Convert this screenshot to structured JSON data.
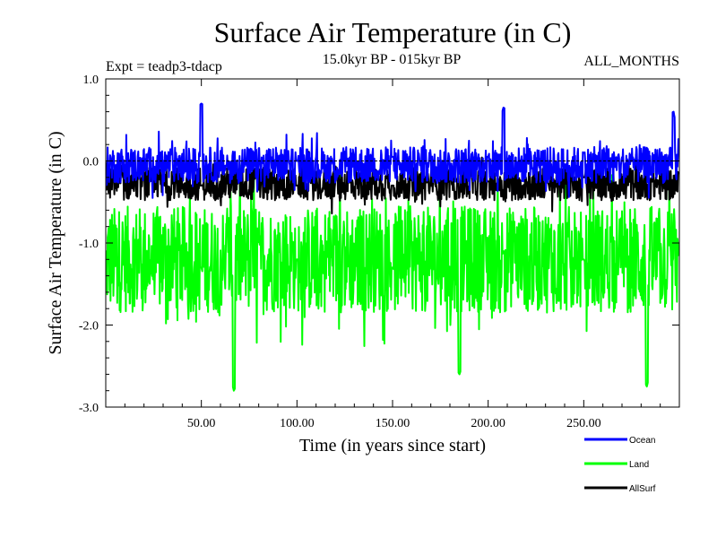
{
  "chart_data": {
    "type": "line",
    "title": "Surface Air Temperature (in C)",
    "subtitle_left": "Expt = teadp3-tdacp",
    "subtitle_center": "15.0kyr BP - 015kyr BP",
    "subtitle_right": "ALL_MONTHS",
    "xlabel": "Time (in years since start)",
    "ylabel": "Surface Air Temperature (in C)",
    "xlim": [
      0,
      300
    ],
    "ylim": [
      -3.0,
      1.0
    ],
    "xticks": [
      50,
      100,
      150,
      200,
      250
    ],
    "xtick_labels": [
      "50.00",
      "100.00",
      "150.00",
      "200.00",
      "250.00"
    ],
    "yticks": [
      1.0,
      0.0,
      -1.0,
      -2.0,
      -3.0
    ],
    "ytick_labels": [
      "1.0",
      "0.0",
      "-1.0",
      "-2.0",
      "-3.0"
    ],
    "reference_line_y": 0.0,
    "series": [
      {
        "name": "Land",
        "color": "#00ff00",
        "mean": -1.2,
        "amplitude": 0.65,
        "x": [
          0,
          50,
          67,
          100,
          150,
          185,
          208,
          250,
          283,
          300
        ],
        "values": [
          -1.1,
          -1.3,
          -2.8,
          -1.2,
          -1.3,
          -2.6,
          -1.1,
          -1.2,
          -2.75,
          -1.1
        ]
      },
      {
        "name": "AllSurf",
        "color": "#000000",
        "mean": -0.28,
        "amplitude": 0.2,
        "x": [
          0,
          50,
          100,
          150,
          200,
          250,
          300
        ],
        "values": [
          -0.35,
          -0.3,
          -0.3,
          -0.3,
          -0.25,
          -0.2,
          -0.15
        ]
      },
      {
        "name": "Ocean",
        "color": "#0000ff",
        "mean": -0.05,
        "amplitude": 0.22,
        "x": [
          0,
          50,
          100,
          150,
          200,
          208,
          250,
          297,
          300
        ],
        "values": [
          -0.3,
          0.7,
          0.0,
          0.05,
          0.05,
          0.65,
          0.1,
          0.6,
          0.2
        ]
      }
    ],
    "legend": [
      {
        "name": "Ocean",
        "color": "#0000ff"
      },
      {
        "name": "Land",
        "color": "#00ff00"
      },
      {
        "name": "AllSurf",
        "color": "#000000"
      }
    ]
  }
}
